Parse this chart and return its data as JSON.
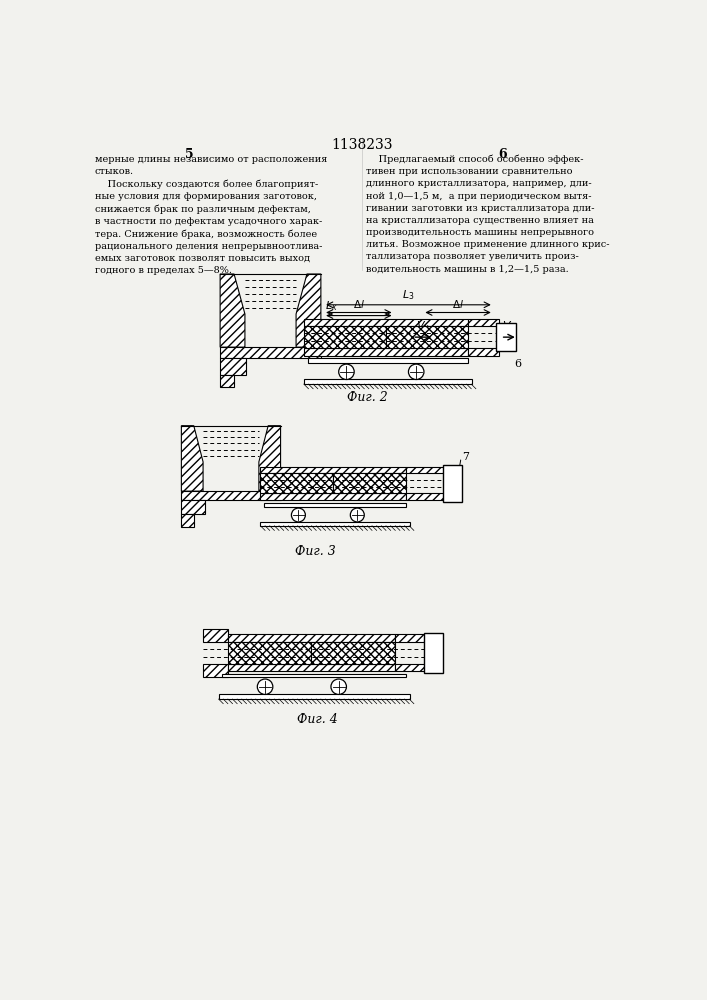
{
  "title": "1138233",
  "col_left": "5",
  "col_right": "6",
  "text_left": "мерные длины независимо от расположения\nстыков.\n    Поскольку создаются более благоприят-\nные условия для формирования заготовок,\nснижается брак по различным дефектам,\nв частности по дефектам усадочного харак-\nтера. Снижение брака, возможность более\nрационального деления непрерывноотлива-\nемых заготовок позволят повысить выход\nгодного в пределах 5—8%.",
  "text_right": "    Предлагаемый способ особенно эффек-\nтивен при использовании сравнительно\nдлинного кристаллизатора, например, дли-\nной 1,0—1,5 м,  а при периодическом вытя-\nгивании заготовки из кристаллизатора дли-\nна кристаллизатора существенно влияет на\nпроизводительность машины непрерывного\nлитья. Возможное применение длинного крис-\nталлизатора позволяет увеличить произ-\nводительность машины в 1,2—1,5 раза.",
  "fig2_caption": "Фиг. 2",
  "fig3_caption": "Фиг. 3",
  "fig4_caption": "Фиг. 4",
  "bg_color": "#f2f2ee",
  "hatch_color": "#333333",
  "line_color": "#000000"
}
